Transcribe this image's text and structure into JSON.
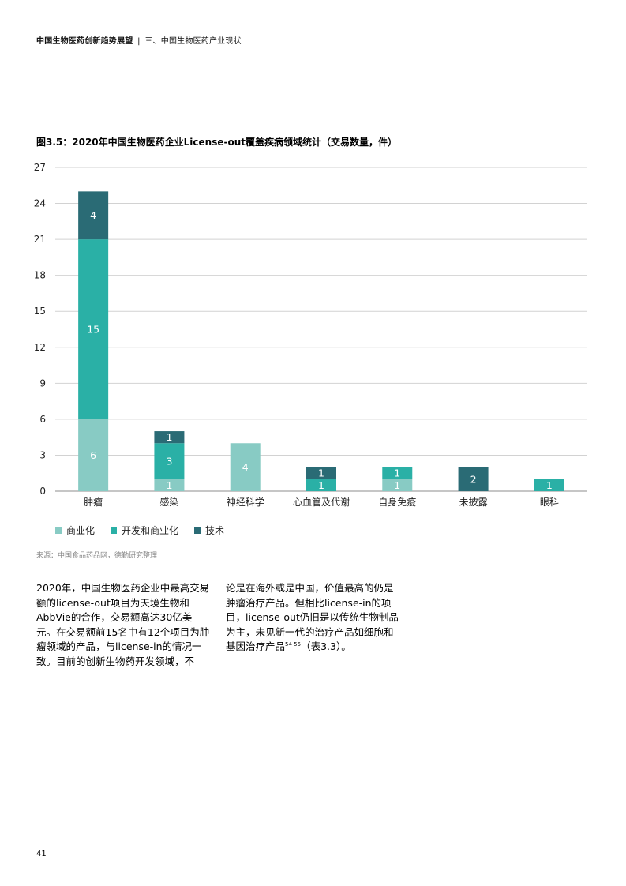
{
  "header": {
    "report_title": "中国生物医药创新趋势展望",
    "separator": "|",
    "section": "三、中国生物医药产业现状"
  },
  "figure": {
    "title": "图3.5：2020年中国生物医药企业License-out覆盖疾病领域统计（交易数量，件）"
  },
  "chart_data": {
    "type": "bar",
    "stacked": true,
    "categories": [
      "肿瘤",
      "感染",
      "神经科学",
      "心血管及代谢",
      "自身免疫",
      "未披露",
      "眼科"
    ],
    "series": [
      {
        "name": "商业化",
        "color": "#88cbc4",
        "values": [
          6,
          1,
          4,
          0,
          1,
          0,
          0
        ]
      },
      {
        "name": "开发和商业化",
        "color": "#2ab0a6",
        "values": [
          15,
          3,
          0,
          1,
          1,
          0,
          1
        ]
      },
      {
        "name": "技术",
        "color": "#2a6b75",
        "values": [
          4,
          1,
          0,
          1,
          0,
          2,
          0
        ]
      }
    ],
    "ylim": [
      0,
      27
    ],
    "yticks": [
      0,
      3,
      6,
      9,
      12,
      15,
      18,
      21,
      24,
      27
    ],
    "grid": true,
    "legend": "bottom-left"
  },
  "source": "来源：中国食品药品网，德勤研究整理",
  "body": {
    "left_paragraph": "2020年，中国生物医药企业中最高交易额的license-out项目为天境生物和AbbVie的合作，交易额高达30亿美元。在交易额前15名中有12个项目为肿瘤领域的产品，与license-in的情况一致。目前的创新生物药开发领域，不",
    "right_paragraph": "论是在海外或是中国，价值最高的仍是肿瘤治疗产品。但相比license-in的项目，license-out仍旧是以传统生物制品为主，未见新一代的治疗产品如细胞和基因治疗产品",
    "right_superscript": "54 55",
    "right_suffix": "（表3.3）。"
  },
  "page_number": "41"
}
